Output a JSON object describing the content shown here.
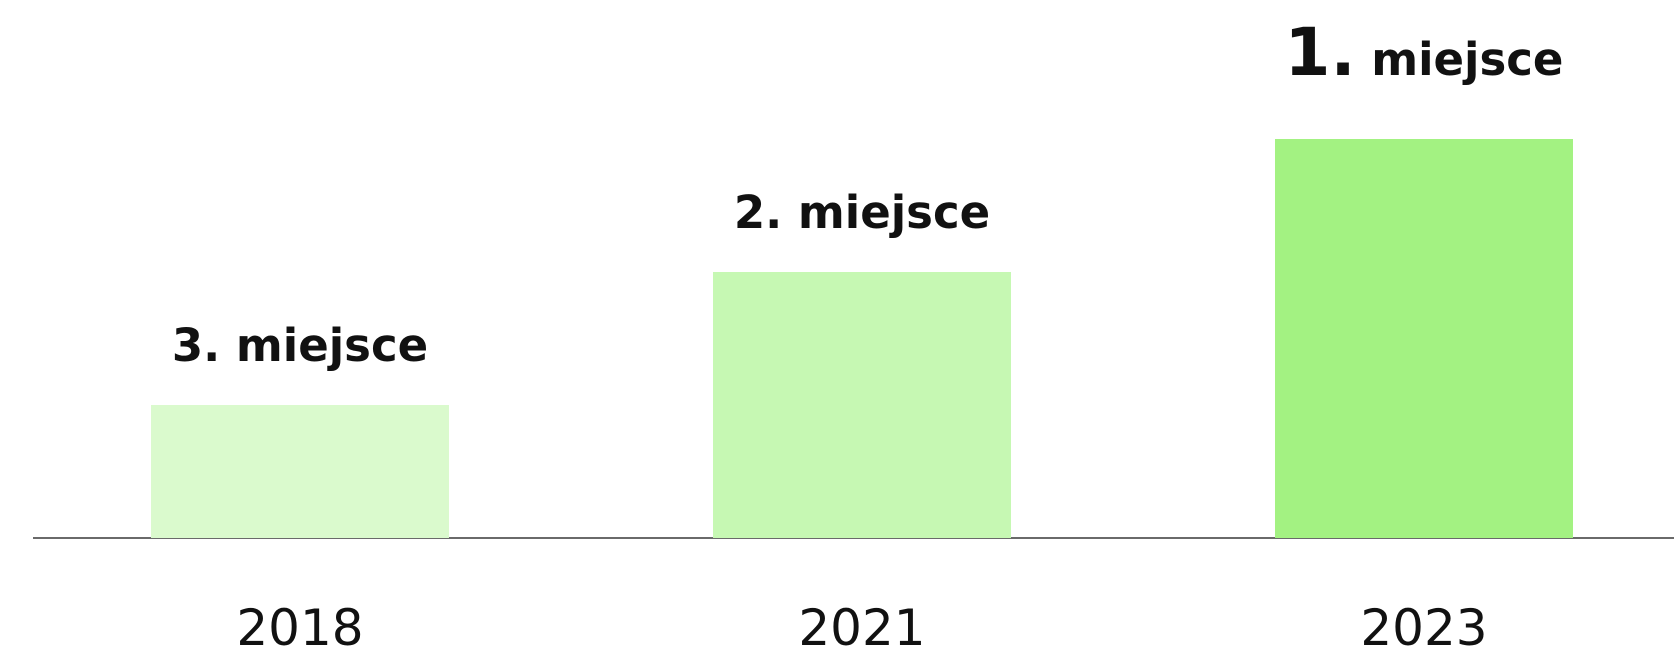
{
  "podium": [
    {
      "year": "2018",
      "rank": "3.",
      "text": "miejsce",
      "color": "#dafacd"
    },
    {
      "year": "2021",
      "rank": "2.",
      "text": "miejsce",
      "color": "#c6f8b3"
    },
    {
      "year": "2023",
      "rank": "1.",
      "text": "miejsce",
      "color": "#a3f282"
    }
  ]
}
